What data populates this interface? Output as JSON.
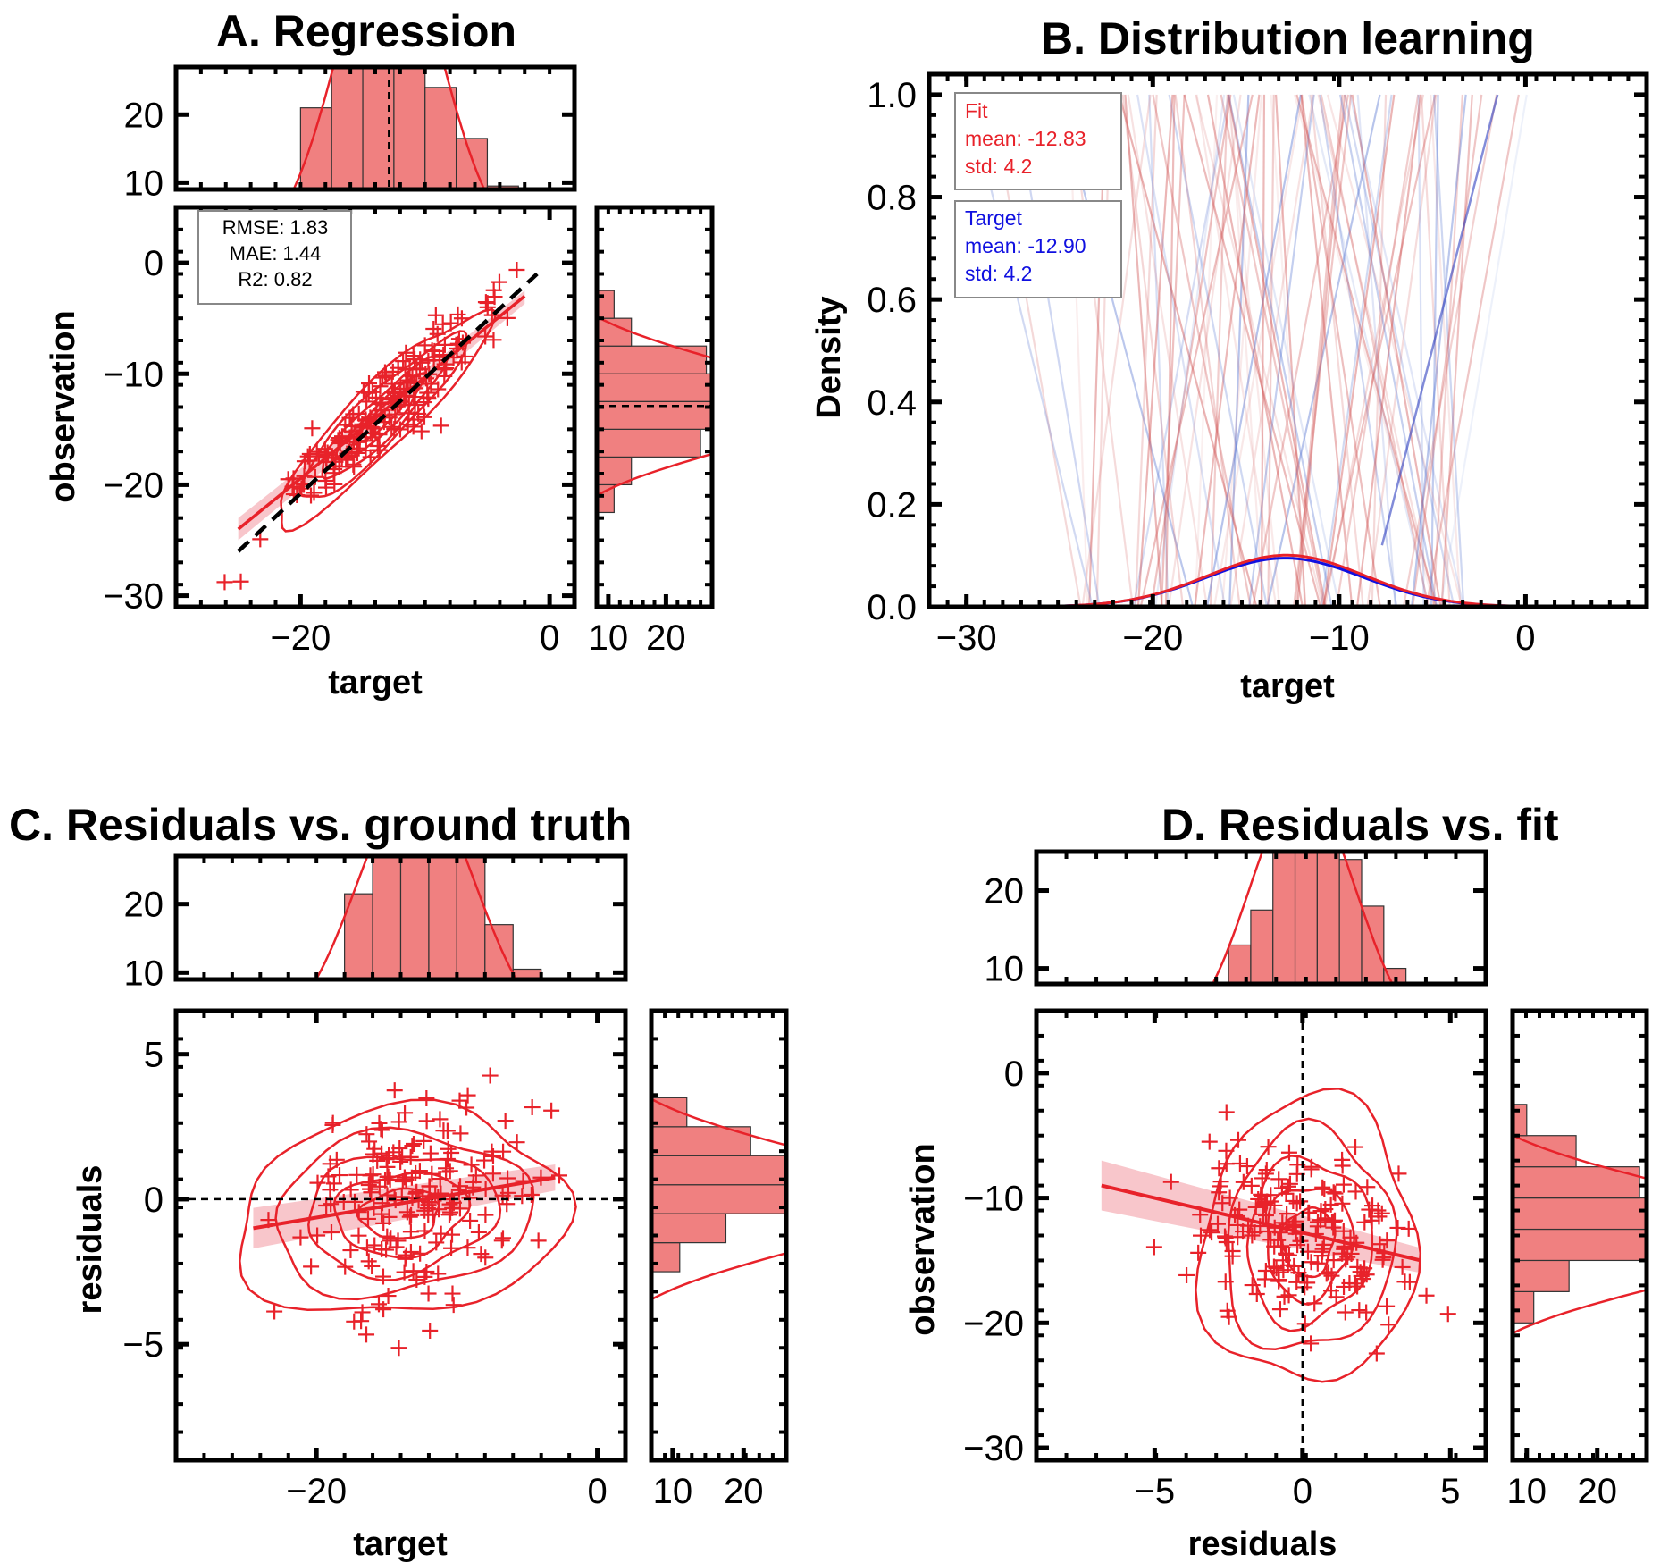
{
  "panel_a": {
    "title": "A. Regression",
    "xlabel": "target",
    "ylabel": "observation",
    "stats": [
      "RMSE: 1.83",
      "MAE: 1.44",
      "R2: 0.82"
    ]
  },
  "panel_b": {
    "title": "B. Distribution learning",
    "xlabel": "target",
    "ylabel": "Density",
    "fit_box": [
      "Fit",
      "mean: -12.83",
      "std: 4.2"
    ],
    "target_box": [
      "Target",
      "mean: -12.90",
      "std: 4.2"
    ]
  },
  "panel_c": {
    "title": "C. Residuals vs. ground truth",
    "xlabel": "target",
    "ylabel": "residuals"
  },
  "panel_d": {
    "title": "D. Residuals vs. fit",
    "xlabel": "residuals",
    "ylabel": "observation"
  },
  "colors": {
    "fit": "#e8222a",
    "target": "#1010e0",
    "hist_fill": "#f08080",
    "line_black": "#000000"
  },
  "chart_data": [
    {
      "panel": "A",
      "type": "scatter",
      "title": "A. Regression",
      "xlabel": "target",
      "ylabel": "observation",
      "xlim": [
        -30,
        2
      ],
      "ylim": [
        -31,
        5
      ],
      "xticks": [
        -20,
        0
      ],
      "yticks": [
        -30,
        -20,
        -10,
        0
      ],
      "identity_line": [
        [
          -25,
          -26
        ],
        [
          -1,
          -1
        ]
      ],
      "fit_line": [
        [
          -25,
          -24
        ],
        [
          -2,
          -3
        ]
      ],
      "top_hist": {
        "ylim": [
          9,
          27
        ],
        "yticks": [
          10,
          20
        ]
      },
      "right_hist": {
        "xlim": [
          8,
          28
        ],
        "xticks": [
          10,
          20
        ]
      },
      "points_generation": {
        "n": 200,
        "target_mean": -12.9,
        "target_std": 4.2,
        "residual_std": 1.83
      }
    },
    {
      "panel": "B",
      "type": "line",
      "title": "B. Distribution learning",
      "xlabel": "target",
      "ylabel": "Density",
      "xlim": [
        -32,
        6.5
      ],
      "ylim": [
        0,
        1.04
      ],
      "xticks": [
        -30,
        -20,
        -10,
        0
      ],
      "yticks": [
        0.0,
        0.2,
        0.4,
        0.6,
        0.8,
        1.0
      ],
      "series": [
        {
          "name": "Fit",
          "mean": -12.83,
          "std": 4.2,
          "color": "#e8222a"
        },
        {
          "name": "Target",
          "mean": -12.9,
          "std": 4.2,
          "color": "#1010e0"
        }
      ]
    },
    {
      "panel": "C",
      "type": "scatter",
      "title": "C. Residuals vs. ground truth",
      "xlabel": "target",
      "ylabel": "residuals",
      "xlim": [
        -30,
        2
      ],
      "ylim": [
        -9,
        6.5
      ],
      "xticks": [
        -20,
        0
      ],
      "yticks": [
        -5,
        0,
        5
      ],
      "zero_line": 0,
      "fit_line": [
        [
          -24.5,
          -1.0
        ],
        [
          -3,
          0.75
        ]
      ],
      "top_hist": {
        "ylim": [
          9,
          27
        ],
        "yticks": [
          10,
          20
        ]
      },
      "right_hist": {
        "xlim": [
          7,
          26
        ],
        "xticks": [
          10,
          20
        ]
      }
    },
    {
      "panel": "D",
      "type": "scatter",
      "title": "D. Residuals vs. fit",
      "xlabel": "residuals",
      "ylabel": "observation",
      "xlim": [
        -9,
        6.2
      ],
      "ylim": [
        -31,
        5
      ],
      "xticks": [
        -5,
        0,
        5
      ],
      "yticks": [
        -30,
        -20,
        -10,
        0
      ],
      "zero_line": 0,
      "fit_line": [
        [
          -6.8,
          -9
        ],
        [
          4,
          -15
        ]
      ],
      "top_hist": {
        "ylim": [
          8,
          25
        ],
        "yticks": [
          10,
          20
        ]
      },
      "right_hist": {
        "xlim": [
          8,
          27
        ],
        "xticks": [
          10,
          20
        ]
      }
    }
  ]
}
